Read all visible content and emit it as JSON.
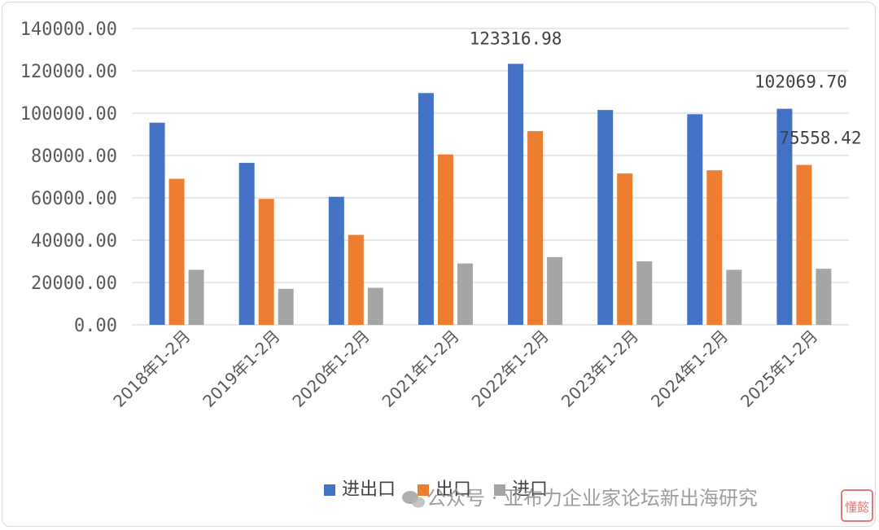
{
  "chart_data": {
    "type": "bar",
    "categories": [
      "2018年1-2月",
      "2019年1-2月",
      "2020年1-2月",
      "2021年1-2月",
      "2022年1-2月",
      "2023年1-2月",
      "2024年1-2月",
      "2025年1-2月"
    ],
    "series": [
      {
        "name": "进出口",
        "color": "#4472c4",
        "values": [
          95500,
          76500,
          60500,
          109500,
          123316.98,
          101500,
          99500,
          102069.7
        ]
      },
      {
        "name": "出口",
        "color": "#ed7d31",
        "values": [
          69000,
          59500,
          42500,
          80500,
          91500,
          71500,
          73000,
          75558.42
        ]
      },
      {
        "name": "进口",
        "color": "#a5a5a5",
        "values": [
          26000,
          17000,
          17500,
          29000,
          32000,
          30000,
          26000,
          26500
        ]
      }
    ],
    "ylim": [
      0,
      140000
    ],
    "yticks": [
      "0.00",
      "20000.00",
      "40000.00",
      "60000.00",
      "80000.00",
      "100000.00",
      "120000.00",
      "140000.00"
    ],
    "data_labels": [
      {
        "series": 0,
        "category": 4,
        "text": "123316.98"
      },
      {
        "series": 0,
        "category": 7,
        "text": "102069.70"
      },
      {
        "series": 1,
        "category": 7,
        "text": "75558.42"
      }
    ],
    "grid": true,
    "legend_position": "bottom",
    "title": "",
    "xlabel": "",
    "ylabel": ""
  },
  "watermark": {
    "text": "公众号 · 亚布力企业家论坛新出海研究",
    "icon": "wechat-icon",
    "stamp_text": "懂懿"
  }
}
